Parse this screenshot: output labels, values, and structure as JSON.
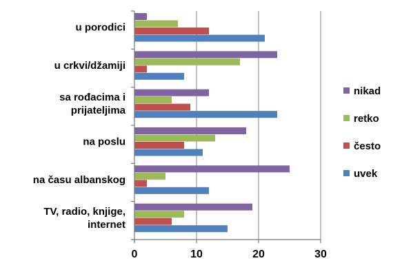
{
  "chart_data": {
    "type": "bar",
    "orientation": "horizontal",
    "categories": [
      [
        "u porodici"
      ],
      [
        "u crkvi/džamiji"
      ],
      [
        "sa rođacima i",
        "prijateljima"
      ],
      [
        "na poslu"
      ],
      [
        "na času albanskog"
      ],
      [
        "TV, radio, knjige,",
        "internet"
      ]
    ],
    "series": [
      {
        "name": "nikad",
        "color": "#8064a2",
        "values": [
          2,
          23,
          12,
          18,
          25,
          19
        ]
      },
      {
        "name": "retko",
        "color": "#9bbb59",
        "values": [
          7,
          17,
          6,
          13,
          5,
          8
        ]
      },
      {
        "name": "često",
        "color": "#c0504d",
        "values": [
          12,
          2,
          9,
          8,
          2,
          6
        ]
      },
      {
        "name": "uvek",
        "color": "#4f81bd",
        "values": [
          21,
          8,
          23,
          11,
          12,
          15
        ]
      }
    ],
    "xlim": [
      0,
      30
    ],
    "xticks": [
      0,
      10,
      20,
      30
    ],
    "grid": true,
    "legend_position": "right",
    "title": "",
    "xlabel": "",
    "ylabel": ""
  }
}
